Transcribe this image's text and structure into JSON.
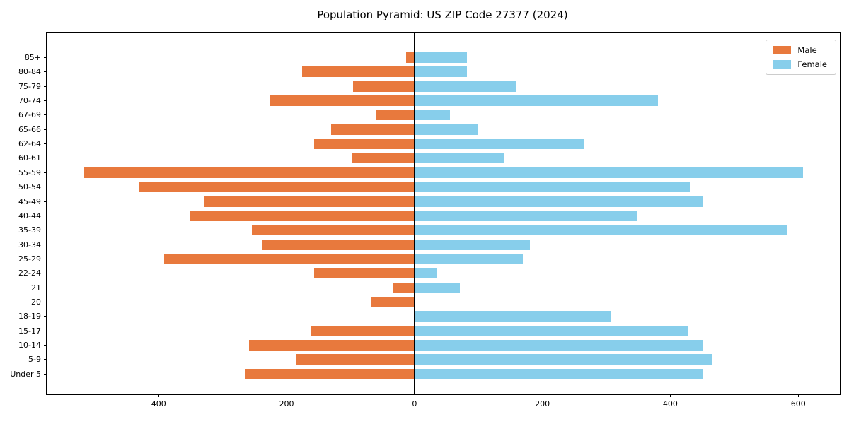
{
  "chart_data": {
    "type": "bar",
    "subtype": "population-pyramid",
    "orientation": "horizontal",
    "title": "Population Pyramid: US ZIP Code 27377 (2024)",
    "categories": [
      "85+",
      "80-84",
      "75-79",
      "70-74",
      "67-69",
      "65-66",
      "62-64",
      "60-61",
      "55-59",
      "50-54",
      "45-49",
      "40-44",
      "35-39",
      "30-34",
      "25-29",
      "22-24",
      "21",
      "20",
      "18-19",
      "15-17",
      "10-14",
      "5-9",
      "Under 5"
    ],
    "series": [
      {
        "name": "Male",
        "side": "left",
        "color": "#E8793D",
        "values": [
          13,
          176,
          96,
          226,
          61,
          130,
          157,
          98,
          516,
          430,
          329,
          351,
          254,
          239,
          391,
          157,
          33,
          67,
          0,
          161,
          259,
          185,
          265
        ]
      },
      {
        "name": "Female",
        "side": "right",
        "color": "#87CEEB",
        "values": [
          82,
          82,
          159,
          381,
          56,
          100,
          266,
          140,
          608,
          430,
          450,
          348,
          582,
          180,
          170,
          35,
          71,
          0,
          307,
          427,
          450,
          465,
          450
        ]
      }
    ],
    "xlim": [
      -575,
      665
    ],
    "x_ticks": [
      {
        "value": -400,
        "label": "400"
      },
      {
        "value": -200,
        "label": "200"
      },
      {
        "value": 0,
        "label": "0"
      },
      {
        "value": 200,
        "label": "200"
      },
      {
        "value": 400,
        "label": "400"
      },
      {
        "value": 600,
        "label": "600"
      }
    ],
    "grid": false,
    "legend_position": "upper-right",
    "axis_color": "#000000",
    "center_line_color": "#000000"
  }
}
